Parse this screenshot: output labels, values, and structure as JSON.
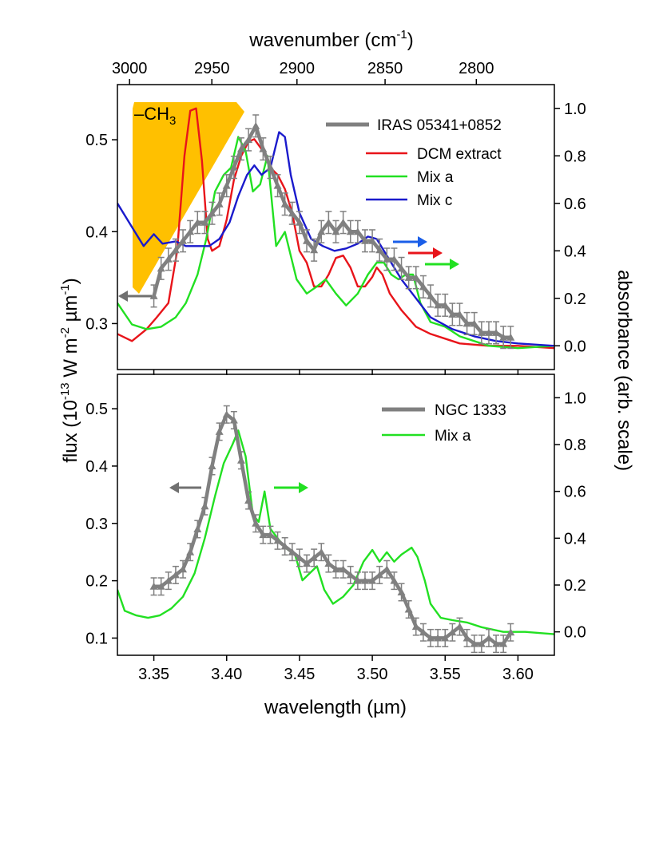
{
  "chart_data": [
    {
      "type": "line",
      "panel": "top",
      "title": "",
      "top_xlabel": "wavenumber (cm",
      "top_xlabel_sup": "-1",
      "top_xlabel_end": ")",
      "top_xticks": [
        3000,
        2950,
        2900,
        2850,
        2800
      ],
      "ylim_left": [
        0.25,
        0.56
      ],
      "ylim_right": [
        -0.1,
        1.1
      ],
      "xlim": [
        3.325,
        3.625
      ],
      "left_yticks": [
        0.3,
        0.4,
        0.5
      ],
      "right_yticks": [
        "0.0",
        "0.2",
        "0.4",
        "0.6",
        "0.8",
        "1.0"
      ],
      "annotation": "–CH",
      "annotation_sub": "3",
      "legend": [
        "IRAS 05341+0852",
        "DCM extract",
        "Mix a",
        "Mix c"
      ],
      "series": [
        {
          "name": "IRAS 05341+0852",
          "color": "#808080",
          "axis": "left",
          "errorbars": true,
          "x": [
            3.35,
            3.355,
            3.36,
            3.365,
            3.37,
            3.375,
            3.38,
            3.385,
            3.39,
            3.395,
            3.4,
            3.405,
            3.41,
            3.415,
            3.42,
            3.425,
            3.43,
            3.435,
            3.44,
            3.445,
            3.45,
            3.455,
            3.46,
            3.465,
            3.47,
            3.475,
            3.48,
            3.485,
            3.49,
            3.495,
            3.5,
            3.505,
            3.51,
            3.515,
            3.52,
            3.525,
            3.53,
            3.535,
            3.54,
            3.545,
            3.55,
            3.555,
            3.56,
            3.565,
            3.57,
            3.575,
            3.58,
            3.585,
            3.59,
            3.595
          ],
          "y": [
            0.33,
            0.36,
            0.37,
            0.38,
            0.39,
            0.4,
            0.41,
            0.41,
            0.42,
            0.43,
            0.45,
            0.47,
            0.49,
            0.5,
            0.515,
            0.49,
            0.47,
            0.45,
            0.43,
            0.42,
            0.41,
            0.39,
            0.38,
            0.4,
            0.41,
            0.4,
            0.41,
            0.4,
            0.4,
            0.39,
            0.39,
            0.38,
            0.37,
            0.37,
            0.36,
            0.35,
            0.35,
            0.34,
            0.33,
            0.32,
            0.32,
            0.31,
            0.31,
            0.3,
            0.3,
            0.29,
            0.29,
            0.29,
            0.285,
            0.285
          ],
          "err": 0.012
        },
        {
          "name": "DCM extract",
          "color": "#e8141a",
          "axis": "right",
          "x": [
            3.325,
            3.335,
            3.345,
            3.352,
            3.36,
            3.366,
            3.371,
            3.375,
            3.379,
            3.383,
            3.387,
            3.39,
            3.395,
            3.4,
            3.405,
            3.41,
            3.415,
            3.419,
            3.425,
            3.43,
            3.435,
            3.44,
            3.445,
            3.45,
            3.455,
            3.46,
            3.465,
            3.47,
            3.475,
            3.48,
            3.485,
            3.49,
            3.495,
            3.5,
            3.503,
            3.507,
            3.512,
            3.52,
            3.53,
            3.54,
            3.55,
            3.56,
            3.58,
            3.6,
            3.625
          ],
          "y": [
            0.05,
            0.02,
            0.07,
            0.12,
            0.18,
            0.4,
            0.8,
            0.99,
            1.0,
            0.78,
            0.45,
            0.4,
            0.42,
            0.53,
            0.7,
            0.8,
            0.86,
            0.87,
            0.82,
            0.75,
            0.72,
            0.66,
            0.56,
            0.4,
            0.35,
            0.25,
            0.25,
            0.3,
            0.37,
            0.38,
            0.33,
            0.25,
            0.25,
            0.29,
            0.33,
            0.3,
            0.22,
            0.15,
            0.08,
            0.05,
            0.03,
            0.01,
            0.0,
            0.0,
            -0.01
          ]
        },
        {
          "name": "Mix a",
          "color": "#22e022",
          "axis": "right",
          "x": [
            3.325,
            3.335,
            3.345,
            3.355,
            3.365,
            3.372,
            3.38,
            3.386,
            3.392,
            3.398,
            3.403,
            3.408,
            3.413,
            3.418,
            3.423,
            3.428,
            3.434,
            3.44,
            3.448,
            3.455,
            3.462,
            3.468,
            3.475,
            3.482,
            3.49,
            3.497,
            3.503,
            3.508,
            3.513,
            3.518,
            3.523,
            3.528,
            3.533,
            3.54,
            3.55,
            3.56,
            3.58,
            3.6,
            3.625
          ],
          "y": [
            0.18,
            0.09,
            0.07,
            0.08,
            0.12,
            0.18,
            0.3,
            0.45,
            0.65,
            0.72,
            0.75,
            0.88,
            0.82,
            0.65,
            0.68,
            0.8,
            0.42,
            0.48,
            0.28,
            0.22,
            0.25,
            0.28,
            0.22,
            0.17,
            0.22,
            0.3,
            0.35,
            0.35,
            0.3,
            0.28,
            0.3,
            0.3,
            0.18,
            0.1,
            0.08,
            0.04,
            0.0,
            -0.01,
            0.0
          ]
        },
        {
          "name": "Mix c",
          "color": "#1a1acc",
          "axis": "right",
          "x": [
            3.325,
            3.335,
            3.343,
            3.35,
            3.356,
            3.365,
            3.372,
            3.38,
            3.388,
            3.395,
            3.402,
            3.408,
            3.414,
            3.419,
            3.424,
            3.43,
            3.436,
            3.44,
            3.444,
            3.45,
            3.458,
            3.466,
            3.474,
            3.482,
            3.49,
            3.497,
            3.503,
            3.51,
            3.52,
            3.53,
            3.54,
            3.555,
            3.57,
            3.585,
            3.6,
            3.625
          ],
          "y": [
            0.6,
            0.5,
            0.42,
            0.47,
            0.43,
            0.44,
            0.42,
            0.42,
            0.42,
            0.45,
            0.52,
            0.63,
            0.72,
            0.76,
            0.72,
            0.75,
            0.9,
            0.88,
            0.72,
            0.56,
            0.45,
            0.42,
            0.4,
            0.41,
            0.43,
            0.46,
            0.45,
            0.38,
            0.28,
            0.2,
            0.12,
            0.07,
            0.04,
            0.02,
            0.01,
            0.0
          ]
        }
      ]
    },
    {
      "type": "line",
      "panel": "bottom",
      "title": "",
      "xlabel": "wavelength (µm)",
      "ylabel": "flux (10",
      "ylabel_sup1": "-13",
      "ylabel_mid": " W m",
      "ylabel_sup2": "-2",
      "ylabel_mid2": " µm",
      "ylabel_sup3": "-1",
      "ylabel_end": ")",
      "ylabel_right": "absorbance (arb. scale)",
      "xlim": [
        3.325,
        3.625
      ],
      "xticks": [
        "3.35",
        "3.40",
        "3.45",
        "3.50",
        "3.55",
        "3.60"
      ],
      "ylim_left": [
        0.07,
        0.56
      ],
      "ylim_right": [
        -0.1,
        1.1
      ],
      "left_yticks": [
        "0.1",
        "0.2",
        "0.3",
        "0.4",
        "0.5"
      ],
      "right_yticks": [
        "0.0",
        "0.2",
        "0.4",
        "0.6",
        "0.8",
        "1.0"
      ],
      "legend": [
        "NGC 1333",
        "Mix a"
      ],
      "series": [
        {
          "name": "NGC 1333",
          "color": "#808080",
          "axis": "left",
          "errorbars": true,
          "x": [
            3.35,
            3.355,
            3.36,
            3.365,
            3.37,
            3.375,
            3.38,
            3.385,
            3.39,
            3.395,
            3.4,
            3.405,
            3.41,
            3.415,
            3.42,
            3.425,
            3.43,
            3.435,
            3.44,
            3.445,
            3.45,
            3.455,
            3.46,
            3.465,
            3.47,
            3.475,
            3.48,
            3.485,
            3.49,
            3.495,
            3.5,
            3.505,
            3.51,
            3.515,
            3.52,
            3.525,
            3.53,
            3.535,
            3.54,
            3.545,
            3.55,
            3.555,
            3.56,
            3.565,
            3.57,
            3.575,
            3.58,
            3.585,
            3.59,
            3.595
          ],
          "y": [
            0.19,
            0.19,
            0.2,
            0.21,
            0.22,
            0.25,
            0.29,
            0.33,
            0.4,
            0.46,
            0.49,
            0.48,
            0.41,
            0.34,
            0.3,
            0.28,
            0.28,
            0.27,
            0.26,
            0.25,
            0.24,
            0.23,
            0.24,
            0.25,
            0.23,
            0.22,
            0.22,
            0.21,
            0.2,
            0.2,
            0.2,
            0.21,
            0.22,
            0.2,
            0.18,
            0.15,
            0.12,
            0.11,
            0.1,
            0.1,
            0.1,
            0.11,
            0.12,
            0.1,
            0.09,
            0.09,
            0.1,
            0.09,
            0.09,
            0.11
          ],
          "err": 0.015
        },
        {
          "name": "Mix a",
          "color": "#22e022",
          "axis": "right",
          "x": [
            3.325,
            3.33,
            3.338,
            3.346,
            3.354,
            3.362,
            3.37,
            3.378,
            3.385,
            3.392,
            3.398,
            3.404,
            3.408,
            3.413,
            3.418,
            3.422,
            3.426,
            3.43,
            3.435,
            3.44,
            3.447,
            3.452,
            3.457,
            3.462,
            3.467,
            3.473,
            3.48,
            3.487,
            3.494,
            3.5,
            3.505,
            3.51,
            3.515,
            3.52,
            3.527,
            3.531,
            3.536,
            3.54,
            3.547,
            3.555,
            3.565,
            3.575,
            3.59,
            3.605,
            3.625
          ],
          "y": [
            0.18,
            0.09,
            0.07,
            0.06,
            0.07,
            0.1,
            0.15,
            0.25,
            0.4,
            0.58,
            0.72,
            0.8,
            0.86,
            0.75,
            0.5,
            0.47,
            0.6,
            0.44,
            0.4,
            0.36,
            0.33,
            0.22,
            0.25,
            0.28,
            0.18,
            0.12,
            0.15,
            0.2,
            0.3,
            0.35,
            0.3,
            0.34,
            0.3,
            0.33,
            0.36,
            0.32,
            0.22,
            0.12,
            0.06,
            0.05,
            0.04,
            0.02,
            0.0,
            0.0,
            -0.01
          ]
        }
      ]
    }
  ]
}
